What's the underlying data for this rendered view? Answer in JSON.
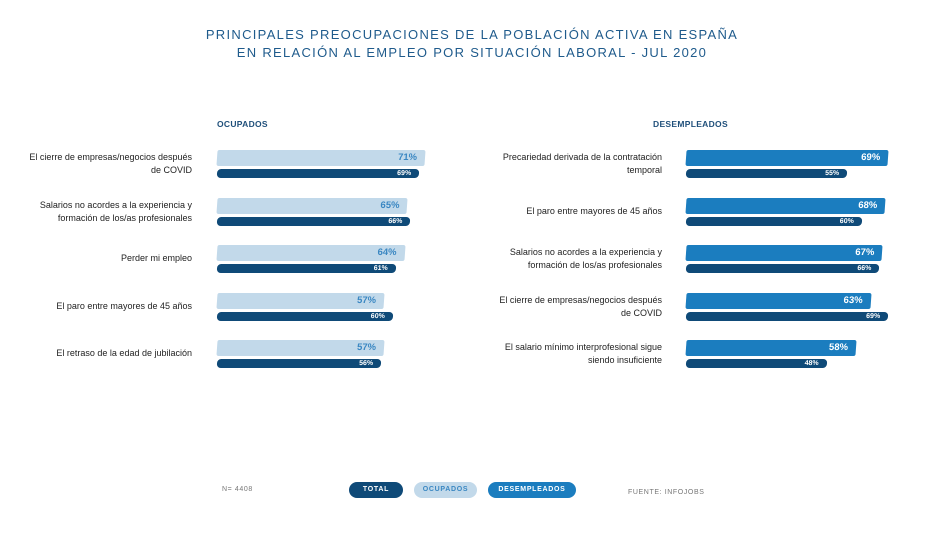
{
  "colors": {
    "ocupados": "#c2d9ea",
    "ocupados_text": "#3a87c2",
    "total": "#0f4a78",
    "desempleados": "#1b7dbf"
  },
  "chart_data": {
    "type": "bar",
    "title": [
      "PRINCIPALES PREOCUPACIONES DE LA POBLACIÓN ACTIVA EN ESPAÑA",
      "EN RELACIÓN AL EMPLEO POR SITUACIÓN LABORAL - JUL 2020"
    ],
    "legend": [
      "TOTAL",
      "OCUPADOS",
      "DESEMPLEADOS"
    ],
    "legend_placement": "bottom",
    "panels": [
      {
        "name": "OCUPADOS",
        "group": "ocupados",
        "categories": [
          [
            "El cierre de empresas/negocios después",
            "de COVID"
          ],
          [
            "Salarios no acordes a la experiencia y",
            "formación de los/as profesionales"
          ],
          [
            "Perder mi empleo"
          ],
          [
            "El paro entre mayores de 45 años"
          ],
          [
            "El retraso de la edad de jubilación"
          ]
        ],
        "values": [
          71,
          65,
          64,
          57,
          57
        ],
        "total": [
          69,
          66,
          61,
          60,
          56
        ]
      },
      {
        "name": "DESEMPLEADOS",
        "group": "desempleados",
        "categories": [
          [
            "Precariedad derivada de la contratación",
            "temporal"
          ],
          [
            "El paro entre mayores de 45 años"
          ],
          [
            "Salarios no acordes a la experiencia y",
            "formación de los/as profesionales"
          ],
          [
            "El cierre de empresas/negocios después",
            "de COVID"
          ],
          [
            "El salario mínimo interprofesional sigue",
            "siendo insuficiente"
          ]
        ],
        "values": [
          69,
          68,
          67,
          63,
          58
        ],
        "total": [
          55,
          60,
          66,
          69,
          48
        ]
      }
    ],
    "unit": "%"
  },
  "footer": {
    "n": "N= 4408",
    "source": "FUENTE: INFOJOBS"
  }
}
